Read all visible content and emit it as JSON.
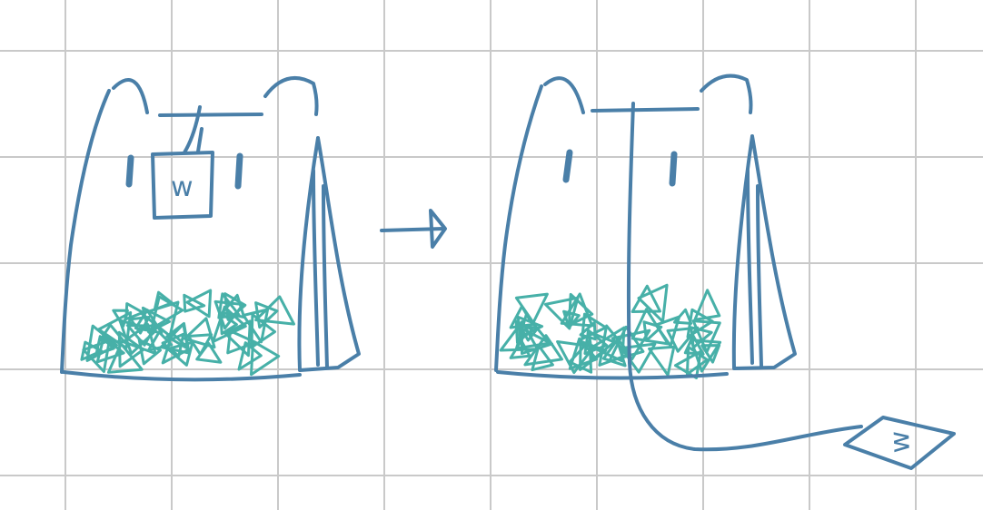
{
  "colors": {
    "background": "#ffffff",
    "grid": "#c9c9c9",
    "outline": "#4a7fa8",
    "confetti": "#47b0a8"
  },
  "grid": {
    "visible": true
  },
  "scene": {
    "before": {
      "tag_letter": "w"
    },
    "arrow": {
      "direction": "right"
    },
    "after": {
      "tag_letter": "w"
    }
  }
}
